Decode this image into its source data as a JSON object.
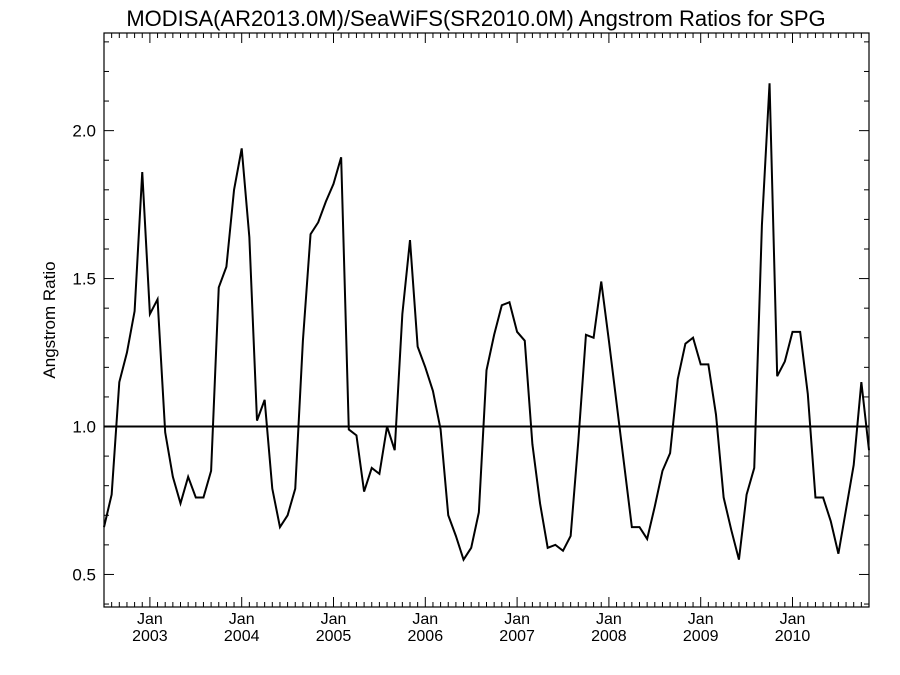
{
  "chart_data": {
    "type": "line",
    "title": "MODISA(AR2013.0M)/SeaWiFS(SR2010.0M)  Angstrom Ratios for SPG",
    "ylabel": "Angstrom Ratio",
    "xlabel": "",
    "x_range": [
      "2002-07-01",
      "2010-11-01"
    ],
    "ylim": [
      0.39,
      2.33
    ],
    "y_ticks": [
      "0.5",
      "1.0",
      "1.5",
      "2.0"
    ],
    "x_tick_labels": [
      {
        "month": "Jan",
        "year": "2003",
        "date": "2003-01-01"
      },
      {
        "month": "Jan",
        "year": "2004",
        "date": "2004-01-01"
      },
      {
        "month": "Jan",
        "year": "2005",
        "date": "2005-01-01"
      },
      {
        "month": "Jan",
        "year": "2006",
        "date": "2006-01-01"
      },
      {
        "month": "Jan",
        "year": "2007",
        "date": "2007-01-01"
      },
      {
        "month": "Jan",
        "year": "2008",
        "date": "2008-01-01"
      },
      {
        "month": "Jan",
        "year": "2009",
        "date": "2009-01-01"
      },
      {
        "month": "Jan",
        "year": "2010",
        "date": "2010-01-01"
      }
    ],
    "reference_line": 1.0,
    "grid": false,
    "series": [
      {
        "x": [
          "2002-07",
          "2002-08",
          "2002-09",
          "2002-10",
          "2002-11",
          "2002-12",
          "2003-01",
          "2003-02",
          "2003-03",
          "2003-04",
          "2003-05",
          "2003-06",
          "2003-07",
          "2003-08",
          "2003-09",
          "2003-10",
          "2003-11",
          "2003-12",
          "2004-01",
          "2004-02",
          "2004-03",
          "2004-04",
          "2004-05",
          "2004-06",
          "2004-07",
          "2004-08",
          "2004-09",
          "2004-10",
          "2004-11",
          "2004-12",
          "2005-01",
          "2005-02",
          "2005-03",
          "2005-04",
          "2005-05",
          "2005-06",
          "2005-07",
          "2005-08",
          "2005-09",
          "2005-10",
          "2005-11",
          "2005-12",
          "2006-01",
          "2006-02",
          "2006-03",
          "2006-04",
          "2006-05",
          "2006-06",
          "2006-07",
          "2006-08",
          "2006-09",
          "2006-10",
          "2006-11",
          "2006-12",
          "2007-01",
          "2007-02",
          "2007-03",
          "2007-04",
          "2007-05",
          "2007-06",
          "2007-07",
          "2007-08",
          "2007-09",
          "2007-10",
          "2007-11",
          "2007-12",
          "2008-01",
          "2008-02",
          "2008-03",
          "2008-04",
          "2008-05",
          "2008-06",
          "2008-07",
          "2008-08",
          "2008-09",
          "2008-10",
          "2008-11",
          "2008-12",
          "2009-01",
          "2009-02",
          "2009-03",
          "2009-04",
          "2009-05",
          "2009-06",
          "2009-07",
          "2009-08",
          "2009-09",
          "2009-10",
          "2009-11",
          "2009-12",
          "2010-01",
          "2010-02",
          "2010-03",
          "2010-04",
          "2010-05",
          "2010-06",
          "2010-07",
          "2010-08",
          "2010-09",
          "2010-10",
          "2010-11"
        ],
        "values": [
          0.66,
          0.77,
          1.15,
          1.25,
          1.39,
          1.86,
          1.38,
          1.43,
          0.98,
          0.83,
          0.74,
          0.83,
          0.76,
          0.76,
          0.85,
          1.47,
          1.54,
          1.8,
          1.94,
          1.64,
          1.02,
          1.09,
          0.79,
          0.66,
          0.7,
          0.79,
          1.29,
          1.65,
          1.69,
          1.76,
          1.82,
          1.91,
          0.99,
          0.97,
          0.78,
          0.86,
          0.84,
          1.0,
          0.92,
          1.38,
          1.63,
          1.27,
          1.2,
          1.12,
          0.99,
          0.7,
          0.63,
          0.55,
          0.59,
          0.71,
          1.19,
          1.31,
          1.41,
          1.42,
          1.32,
          1.29,
          0.94,
          0.74,
          0.59,
          0.6,
          0.58,
          0.63,
          0.95,
          1.31,
          1.3,
          1.49,
          1.29,
          1.08,
          0.87,
          0.66,
          0.66,
          0.62,
          0.73,
          0.85,
          0.91,
          1.16,
          1.28,
          1.3,
          1.21,
          1.21,
          1.04,
          0.76,
          0.65,
          0.55,
          0.77,
          0.86,
          1.68,
          2.16,
          1.17,
          1.22,
          1.32,
          1.32,
          1.11,
          0.76,
          0.76,
          0.68,
          0.57,
          0.72,
          0.87,
          1.15,
          0.92
        ]
      }
    ]
  }
}
